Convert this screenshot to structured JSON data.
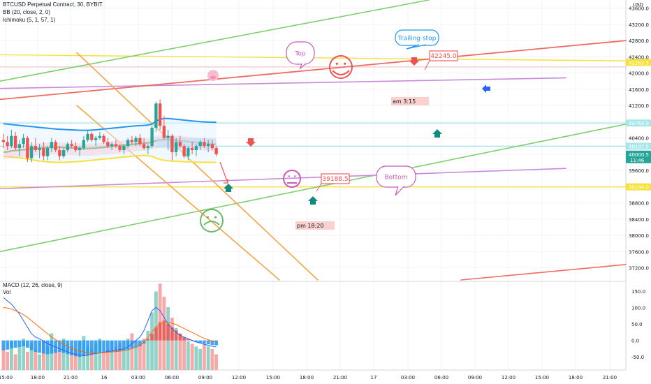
{
  "header": {
    "title": "BTCUSD Perpetual Contract, 30, BYBIT",
    "indicators": [
      "BB (20, close, 2, 0)",
      "Ichimoku (5, 1, 57, 1)"
    ],
    "sub_indicators": [
      "MACD (12, 26, close, 9)",
      "Vol"
    ],
    "currency": "USD"
  },
  "chart_data": {
    "type": "candlestick",
    "symbol": "BTCUSD Perpetual Contract",
    "timeframe": "30",
    "exchange": "BYBIT",
    "price_axis": {
      "ticks": [
        "43600.0",
        "43200.0",
        "42800.0",
        "42400.0",
        "42000.0",
        "41600.0",
        "41200.0",
        "40800.0",
        "40400.0",
        "40000.0",
        "39600.0",
        "39200.0",
        "38800.0",
        "38400.0",
        "38000.0",
        "37600.0",
        "37200.0"
      ],
      "ylim": [
        36900,
        43800
      ]
    },
    "time_axis": {
      "ticks": [
        "15:00",
        "18:00",
        "21:00",
        "16",
        "03:00",
        "06:00",
        "09:00",
        "12:00",
        "15:00",
        "18:00",
        "21:00",
        "17",
        "03:00",
        "06:00",
        "09:00",
        "12:00",
        "15:00",
        "18:00",
        "21:00"
      ]
    },
    "price_tags": [
      {
        "label": "42262.5",
        "value": 42262.5,
        "color": "#f7e13a",
        "text_color": "#131722"
      },
      {
        "label": "40768.0",
        "value": 40768.0,
        "color": "#a9e6ea",
        "text_color": "#131722"
      },
      {
        "label": "40197.5",
        "value": 40197.5,
        "color": "#a9e6ea",
        "text_color": "#131722"
      },
      {
        "label": "40000.5",
        "value": 40000.5,
        "color": "#26a69a",
        "text_color": "#ffffff",
        "sub": "11:46"
      },
      {
        "label": "39194.0",
        "value": 39194.0,
        "color": "#f7e13a",
        "text_color": "#131722"
      }
    ],
    "annotations": {
      "callouts": [
        "Top",
        "Trailing stop",
        "Bottom"
      ],
      "price_labels": [
        "42245.0",
        "39188.5"
      ],
      "time_notes": [
        "am 3:15",
        "pm 18:20"
      ]
    },
    "candles_ohlc": [
      [
        40350,
        40500,
        40150,
        40300
      ],
      [
        40300,
        40450,
        40100,
        40200
      ],
      [
        40200,
        40600,
        40150,
        40450
      ],
      [
        40450,
        40550,
        40100,
        40150
      ],
      [
        40150,
        40350,
        39950,
        40250
      ],
      [
        40250,
        40500,
        40150,
        40400
      ],
      [
        40400,
        40450,
        39800,
        39900
      ],
      [
        39900,
        40300,
        39800,
        40200
      ],
      [
        40200,
        40400,
        40050,
        40100
      ],
      [
        40100,
        40250,
        39900,
        40150
      ],
      [
        40150,
        40300,
        39850,
        39950
      ],
      [
        39950,
        40200,
        39850,
        40150
      ],
      [
        40150,
        40400,
        40050,
        40300
      ],
      [
        40300,
        40350,
        40050,
        40100
      ],
      [
        40100,
        40200,
        39850,
        39950
      ],
      [
        39950,
        40150,
        39900,
        40100
      ],
      [
        40100,
        40300,
        40050,
        40250
      ],
      [
        40250,
        40350,
        40150,
        40200
      ],
      [
        40200,
        40300,
        40050,
        40100
      ],
      [
        40100,
        40200,
        39950,
        40150
      ],
      [
        40150,
        40450,
        40100,
        40350
      ],
      [
        40350,
        40600,
        40300,
        40500
      ],
      [
        40500,
        40550,
        40300,
        40350
      ],
      [
        40350,
        40450,
        40200,
        40400
      ],
      [
        40400,
        40550,
        40350,
        40450
      ],
      [
        40450,
        40500,
        40250,
        40300
      ],
      [
        40300,
        40400,
        40150,
        40200
      ],
      [
        40200,
        40300,
        40100,
        40250
      ],
      [
        40250,
        40350,
        40150,
        40200
      ],
      [
        40200,
        40250,
        40050,
        40100
      ],
      [
        40100,
        40250,
        40000,
        40200
      ],
      [
        40200,
        40400,
        40150,
        40350
      ],
      [
        40350,
        40450,
        40250,
        40300
      ],
      [
        40300,
        40450,
        40200,
        40400
      ],
      [
        40400,
        40500,
        40200,
        40250
      ],
      [
        40250,
        40400,
        40100,
        40150
      ],
      [
        40150,
        40250,
        40000,
        40200
      ],
      [
        40200,
        40700,
        40150,
        40650
      ],
      [
        40650,
        41300,
        40550,
        41250
      ],
      [
        41250,
        41350,
        40600,
        40700
      ],
      [
        40700,
        40950,
        40350,
        40400
      ],
      [
        40400,
        40600,
        40100,
        40450
      ],
      [
        40450,
        40500,
        39850,
        40050
      ],
      [
        40050,
        40400,
        39950,
        40300
      ],
      [
        40300,
        40450,
        40150,
        40200
      ],
      [
        40200,
        40250,
        39900,
        39950
      ],
      [
        39950,
        40200,
        39850,
        40150
      ],
      [
        40150,
        40300,
        40000,
        40100
      ],
      [
        40100,
        40250,
        39950,
        40200
      ],
      [
        40200,
        40350,
        40100,
        40300
      ],
      [
        40300,
        40400,
        40150,
        40200
      ],
      [
        40200,
        40350,
        40050,
        40250
      ],
      [
        40250,
        40350,
        40100,
        40150
      ],
      [
        40150,
        40200,
        39950,
        40000
      ]
    ],
    "bollinger": {
      "upper": [
        40750,
        40740,
        40730,
        40720,
        40710,
        40700,
        40690,
        40680,
        40670,
        40660,
        40650,
        40640,
        40630,
        40620,
        40615,
        40610,
        40605,
        40600,
        40595,
        40590,
        40590,
        40590,
        40595,
        40600,
        40610,
        40620,
        40630,
        40640,
        40650,
        40660,
        40670,
        40680,
        40690,
        40700,
        40705,
        40710,
        40720,
        40740,
        40820,
        40860,
        40880,
        40880,
        40870,
        40860,
        40850,
        40840,
        40830,
        40820,
        40810,
        40800,
        40795,
        40790,
        40788,
        40785
      ],
      "lower": [
        39950,
        39940,
        39930,
        39920,
        39910,
        39900,
        39880,
        39860,
        39845,
        39830,
        39820,
        39810,
        39805,
        39800,
        39800,
        39800,
        39805,
        39810,
        39815,
        39820,
        39830,
        39840,
        39850,
        39860,
        39870,
        39880,
        39890,
        39900,
        39910,
        39920,
        39930,
        39940,
        39950,
        39960,
        39965,
        39970,
        39960,
        39950,
        39900,
        39870,
        39850,
        39840,
        39830,
        39825,
        39820,
        39815,
        39810,
        39810,
        39805,
        39800,
        39800,
        39800,
        39800,
        39800
      ]
    },
    "ichimoku_line": [
      40050,
      40060,
      40080,
      40090,
      40100,
      40110,
      40120,
      40130,
      40140,
      40150,
      40160,
      40165,
      40170,
      40170,
      40170,
      40165,
      40160,
      40155,
      40150,
      40145,
      40140,
      40140,
      40145,
      40150,
      40160,
      40170,
      40180,
      40190,
      40200,
      40210,
      40220,
      40230,
      40240,
      40250,
      40260,
      40270,
      40280,
      40300,
      40330,
      40350,
      40360,
      40360,
      40350,
      40340,
      40330,
      40320,
      40310,
      40300,
      40290,
      40280,
      40270,
      40260,
      40250,
      40240
    ],
    "macd": {
      "ticks": [
        "150.0",
        "100.0",
        "50.0",
        "0.0",
        "-50.0"
      ],
      "range": [
        -90,
        175
      ],
      "histogram": [
        -30,
        -28,
        -25,
        -22,
        -20,
        -18,
        -22,
        -30,
        -35,
        -38,
        -40,
        -42,
        -40,
        -38,
        -35,
        -38,
        -42,
        -45,
        -48,
        -50,
        -48,
        -45,
        -42,
        -40,
        -38,
        -36,
        -35,
        -34,
        -33,
        -32,
        -30,
        -28,
        -25,
        -22,
        -18,
        -10,
        5,
        20,
        40,
        55,
        60,
        50,
        40,
        30,
        20,
        10,
        5,
        0,
        -5,
        -8,
        -10,
        -12,
        -14,
        -15
      ],
      "macd_line": [
        130,
        120,
        110,
        95,
        80,
        60,
        40,
        20,
        10,
        5,
        -2,
        -10,
        -15,
        -20,
        -25,
        -30,
        -35,
        -40,
        -42,
        -45,
        -46,
        -45,
        -42,
        -40,
        -38,
        -36,
        -34,
        -32,
        -30,
        -28,
        -25,
        -20,
        -10,
        0,
        10,
        30,
        60,
        90,
        100,
        90,
        70,
        50,
        35,
        25,
        15,
        10,
        5,
        0,
        -5,
        -8,
        -12,
        -15,
        -18,
        -20
      ],
      "signal_line": [
        100,
        98,
        95,
        90,
        85,
        78,
        70,
        60,
        50,
        40,
        30,
        20,
        10,
        2,
        -5,
        -12,
        -18,
        -24,
        -28,
        -32,
        -35,
        -37,
        -38,
        -38,
        -38,
        -37,
        -36,
        -35,
        -34,
        -33,
        -31,
        -29,
        -25,
        -20,
        -14,
        -5,
        10,
        25,
        40,
        50,
        55,
        55,
        52,
        48,
        42,
        36,
        30,
        24,
        18,
        12,
        6,
        2,
        -2,
        -5
      ],
      "volume": [
        40,
        35,
        55,
        30,
        45,
        60,
        35,
        50,
        40,
        30,
        55,
        45,
        70,
        40,
        35,
        60,
        50,
        45,
        40,
        55,
        65,
        45,
        40,
        50,
        60,
        35,
        40,
        55,
        45,
        50,
        40,
        60,
        70,
        45,
        50,
        60,
        75,
        110,
        150,
        165,
        140,
        120,
        100,
        80,
        70,
        60,
        55,
        50,
        45,
        40,
        50,
        45,
        40,
        30
      ]
    }
  }
}
